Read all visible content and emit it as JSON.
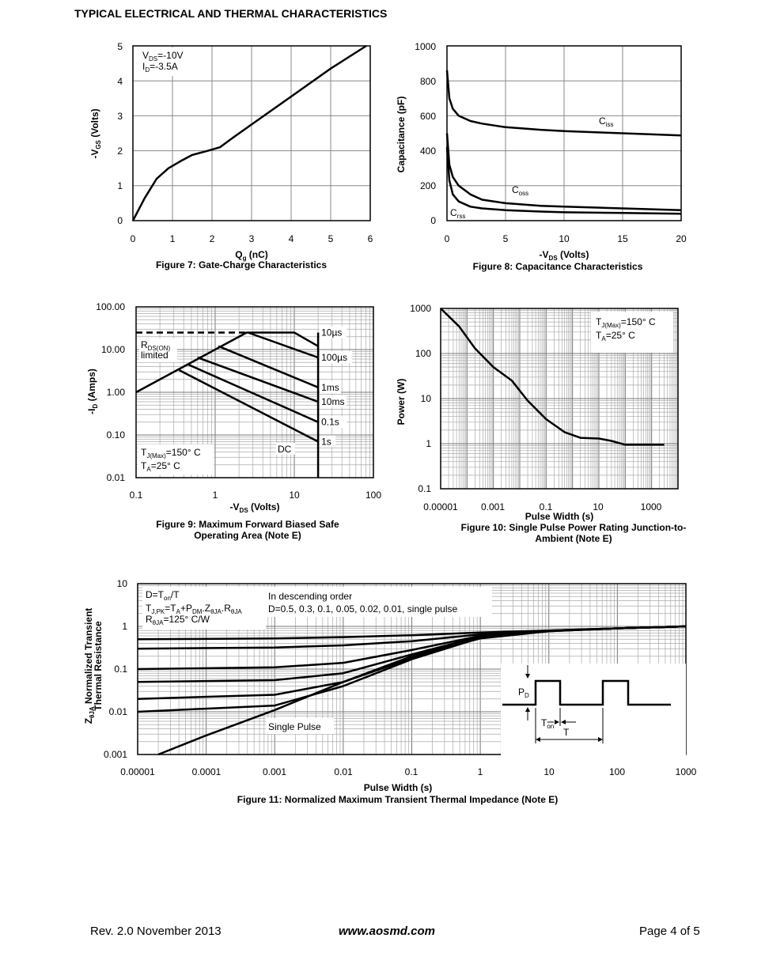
{
  "page": {
    "title": "TYPICAL ELECTRICAL AND THERMAL CHARACTERISTICS",
    "footer_left": "Rev. 2.0 November 2013",
    "footer_center": "www.aosmd.com",
    "footer_right": "Page 4 of 5"
  },
  "chart_data": [
    {
      "id": "fig7",
      "type": "line",
      "caption": "Figure 7: Gate-Charge Characteristics",
      "xlabel": "Qg (nC)",
      "ylabel": "-VGS (Volts)",
      "xlim": [
        0,
        6
      ],
      "ylim": [
        0,
        5
      ],
      "xticks": [
        "0",
        "1",
        "2",
        "3",
        "4",
        "5",
        "6"
      ],
      "yticks": [
        "0",
        "1",
        "2",
        "3",
        "4",
        "5"
      ],
      "grid": true,
      "annotations": [
        "VDS=-10V",
        "ID=-3.5A"
      ],
      "series": [
        {
          "x": [
            0,
            0.3,
            0.6,
            0.9,
            1.2,
            1.5,
            1.9,
            2.2,
            2.5,
            3.0,
            4.0,
            5.0,
            5.9
          ],
          "y": [
            0,
            0.65,
            1.2,
            1.5,
            1.7,
            1.88,
            2.0,
            2.1,
            2.35,
            2.75,
            3.55,
            4.35,
            5.0
          ]
        }
      ]
    },
    {
      "id": "fig8",
      "type": "line",
      "caption": "Figure 8: Capacitance Characteristics",
      "xlabel": "-VDS (Volts)",
      "ylabel": "Capacitance (pF)",
      "xlim": [
        0,
        20
      ],
      "ylim": [
        0,
        1000
      ],
      "xticks": [
        "0",
        "5",
        "10",
        "15",
        "20"
      ],
      "yticks": [
        "0",
        "200",
        "400",
        "600",
        "800",
        "1000"
      ],
      "grid": true,
      "series": [
        {
          "name": "Ciss",
          "x": [
            0,
            0.2,
            0.5,
            1,
            2,
            3,
            5,
            8,
            10,
            15,
            20
          ],
          "y": [
            860,
            700,
            640,
            600,
            570,
            555,
            535,
            520,
            512,
            500,
            488
          ]
        },
        {
          "name": "Coss",
          "x": [
            0,
            0.2,
            0.5,
            1,
            2,
            3,
            5,
            8,
            10,
            15,
            20
          ],
          "y": [
            500,
            320,
            250,
            200,
            150,
            120,
            100,
            85,
            80,
            70,
            60
          ]
        },
        {
          "name": "Crss",
          "x": [
            0,
            0.2,
            0.5,
            1,
            2,
            3,
            5,
            8,
            10,
            15,
            20
          ],
          "y": [
            420,
            230,
            150,
            110,
            80,
            70,
            60,
            52,
            48,
            44,
            40
          ]
        }
      ]
    },
    {
      "id": "fig9",
      "type": "line",
      "caption": "Figure 9: Maximum Forward Biased Safe Operating Area (Note E)",
      "xlabel": "-VDS (Volts)",
      "ylabel": "-ID (Amps)",
      "xscale": "log",
      "yscale": "log",
      "xlim": [
        0.1,
        100
      ],
      "ylim": [
        0.01,
        100
      ],
      "xticks": [
        "0.1",
        "1",
        "10",
        "100"
      ],
      "yticks": [
        "0.01",
        "0.10",
        "1.00",
        "10.00",
        "100.00"
      ],
      "grid": true,
      "annotations": [
        "RDS(ON) limited",
        "DC",
        "TJ(Max)=150° C",
        "TA=25° C"
      ],
      "limit_line": {
        "x": [
          0.1,
          2.5
        ],
        "y": [
          25,
          25
        ]
      },
      "series": [
        {
          "name": "10µs",
          "x": [
            0.1,
            2.5,
            10,
            20
          ],
          "y": [
            1.0,
            25,
            25,
            12
          ]
        },
        {
          "name": "100µs",
          "x": [
            2.6,
            20
          ],
          "y": [
            25,
            6.5
          ]
        },
        {
          "name": "1ms",
          "x": [
            1.1,
            20
          ],
          "y": [
            12,
            1.3
          ]
        },
        {
          "name": "10ms",
          "x": [
            0.6,
            20
          ],
          "y": [
            6.5,
            0.6
          ]
        },
        {
          "name": "0.1s",
          "x": [
            0.45,
            20
          ],
          "y": [
            4.5,
            0.2
          ]
        },
        {
          "name": "1s",
          "x": [
            0.35,
            20
          ],
          "y": [
            3.3,
            0.07
          ]
        },
        {
          "name": "DC",
          "x": [
            20,
            20
          ],
          "y": [
            0.01,
            25
          ]
        }
      ]
    },
    {
      "id": "fig10",
      "type": "line",
      "caption": "Figure 10: Single Pulse Power Rating Junction-to-Ambient (Note E)",
      "xlabel": "Pulse Width (s)",
      "ylabel": "Power (W)",
      "xscale": "log",
      "yscale": "log",
      "xlim": [
        1e-05,
        10000
      ],
      "ylim": [
        0.1,
        1000
      ],
      "xticks": [
        "0.00001",
        "0.001",
        "0.1",
        "10",
        "1000"
      ],
      "yticks": [
        "0.1",
        "1",
        "10",
        "100",
        "1000"
      ],
      "grid": true,
      "annotations": [
        "TJ(Max)=150° C",
        "TA=25° C"
      ],
      "series": [
        {
          "x": [
            1e-05,
            5e-05,
            0.0002,
            0.001,
            0.005,
            0.02,
            0.1,
            0.5,
            2,
            10,
            30,
            100,
            1000,
            3000
          ],
          "y": [
            1000,
            400,
            130,
            50,
            25,
            9,
            3.5,
            1.8,
            1.35,
            1.3,
            1.15,
            0.95,
            0.95,
            0.95
          ]
        }
      ]
    },
    {
      "id": "fig11",
      "type": "line",
      "caption": "Figure 11: Normalized Maximum Transient Thermal Impedance (Note E)",
      "xlabel": "Pulse Width (s)",
      "ylabel": "ZθJA Normalized Transient Thermal Resistance",
      "xscale": "log",
      "yscale": "log",
      "xlim": [
        1e-05,
        1000
      ],
      "ylim": [
        0.001,
        10
      ],
      "xticks": [
        "0.00001",
        "0.0001",
        "0.001",
        "0.01",
        "0.1",
        "1",
        "10",
        "100",
        "1000"
      ],
      "yticks": [
        "0.001",
        "0.01",
        "0.1",
        "1",
        "10"
      ],
      "grid": true,
      "annotations": [
        "D=Ton/T",
        "TJ,PK=TA+PDM.ZθJA.RθJA",
        "RθJA=125° C/W",
        "In descending order",
        "D=0.5, 0.3, 0.1, 0.05, 0.02, 0.01, single pulse",
        "Single Pulse",
        "PD",
        "Ton",
        "T"
      ],
      "series": [
        {
          "x": [
            1e-05,
            0.001,
            0.01,
            0.1,
            1,
            10,
            100,
            1000
          ],
          "y": [
            0.5,
            0.52,
            0.56,
            0.62,
            0.72,
            0.8,
            0.9,
            1.0
          ]
        },
        {
          "x": [
            1e-05,
            0.001,
            0.01,
            0.1,
            1,
            10,
            100,
            1000
          ],
          "y": [
            0.3,
            0.32,
            0.36,
            0.45,
            0.65,
            0.8,
            0.9,
            1.0
          ]
        },
        {
          "x": [
            1e-05,
            0.001,
            0.01,
            0.1,
            1,
            10,
            100,
            1000
          ],
          "y": [
            0.1,
            0.11,
            0.14,
            0.28,
            0.6,
            0.78,
            0.9,
            1.0
          ]
        },
        {
          "x": [
            1e-05,
            0.001,
            0.01,
            0.1,
            1,
            10,
            100,
            1000
          ],
          "y": [
            0.05,
            0.055,
            0.08,
            0.22,
            0.58,
            0.78,
            0.9,
            1.0
          ]
        },
        {
          "x": [
            1e-05,
            0.001,
            0.01,
            0.1,
            1,
            10,
            100,
            1000
          ],
          "y": [
            0.02,
            0.025,
            0.05,
            0.18,
            0.55,
            0.78,
            0.9,
            1.0
          ]
        },
        {
          "x": [
            1e-05,
            0.001,
            0.01,
            0.1,
            1,
            10,
            100,
            1000
          ],
          "y": [
            0.01,
            0.014,
            0.04,
            0.17,
            0.54,
            0.77,
            0.9,
            1.0
          ]
        },
        {
          "name": "Single Pulse",
          "x": [
            2e-05,
            0.0001,
            0.001,
            0.01,
            0.1,
            1,
            10,
            100,
            1000
          ],
          "y": [
            0.001,
            0.0028,
            0.011,
            0.05,
            0.2,
            0.52,
            0.77,
            0.9,
            1.0
          ]
        }
      ]
    }
  ]
}
